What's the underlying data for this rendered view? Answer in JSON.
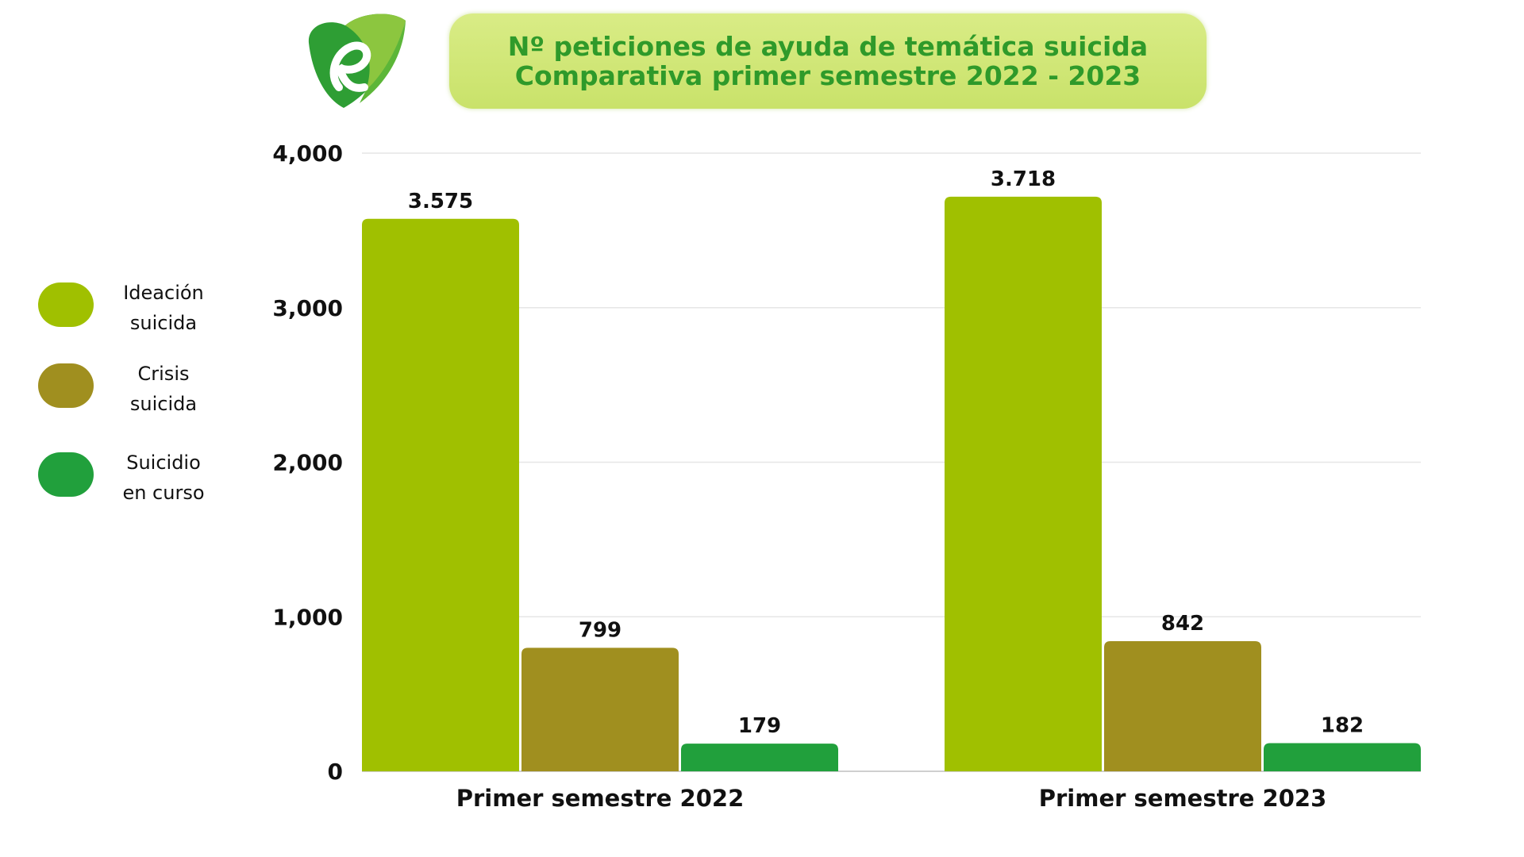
{
  "colors": {
    "title_bg": "#cfe673",
    "title_text": "#2f9a2a"
  },
  "title": {
    "line1": "Nº peticiones de ayuda de temática suicida",
    "line2": "Comparativa primer semestre 2022 - 2023"
  },
  "legend": [
    {
      "label": "Ideación\nsuicida",
      "color": "#a0c000"
    },
    {
      "label": "Crisis\nsuicida",
      "color": "#a08f1f"
    },
    {
      "label": "Suicidio\nen curso",
      "color": "#21a03c"
    }
  ],
  "chart_data": {
    "type": "bar",
    "title": "Nº peticiones de ayuda de temática suicida Comparativa primer semestre 2022 - 2023",
    "categories": [
      "Primer semestre 2022",
      "Primer semestre 2023"
    ],
    "series": [
      {
        "name": "Ideación suicida",
        "color": "#a0c000",
        "values": [
          3575,
          3718
        ],
        "labels": [
          "3.575",
          "3.718"
        ]
      },
      {
        "name": "Crisis suicida",
        "color": "#a08f1f",
        "values": [
          799,
          842
        ],
        "labels": [
          "799",
          "842"
        ]
      },
      {
        "name": "Suicidio en curso",
        "color": "#21a03c",
        "values": [
          179,
          182
        ],
        "labels": [
          "179",
          "182"
        ]
      }
    ],
    "ylim": [
      0,
      4000
    ],
    "yticks": [
      0,
      1000,
      2000,
      3000,
      4000
    ],
    "ytick_labels": [
      "0",
      "1,000",
      "2,000",
      "3,000",
      "4,000"
    ],
    "grid": true,
    "legend_position": "left"
  }
}
